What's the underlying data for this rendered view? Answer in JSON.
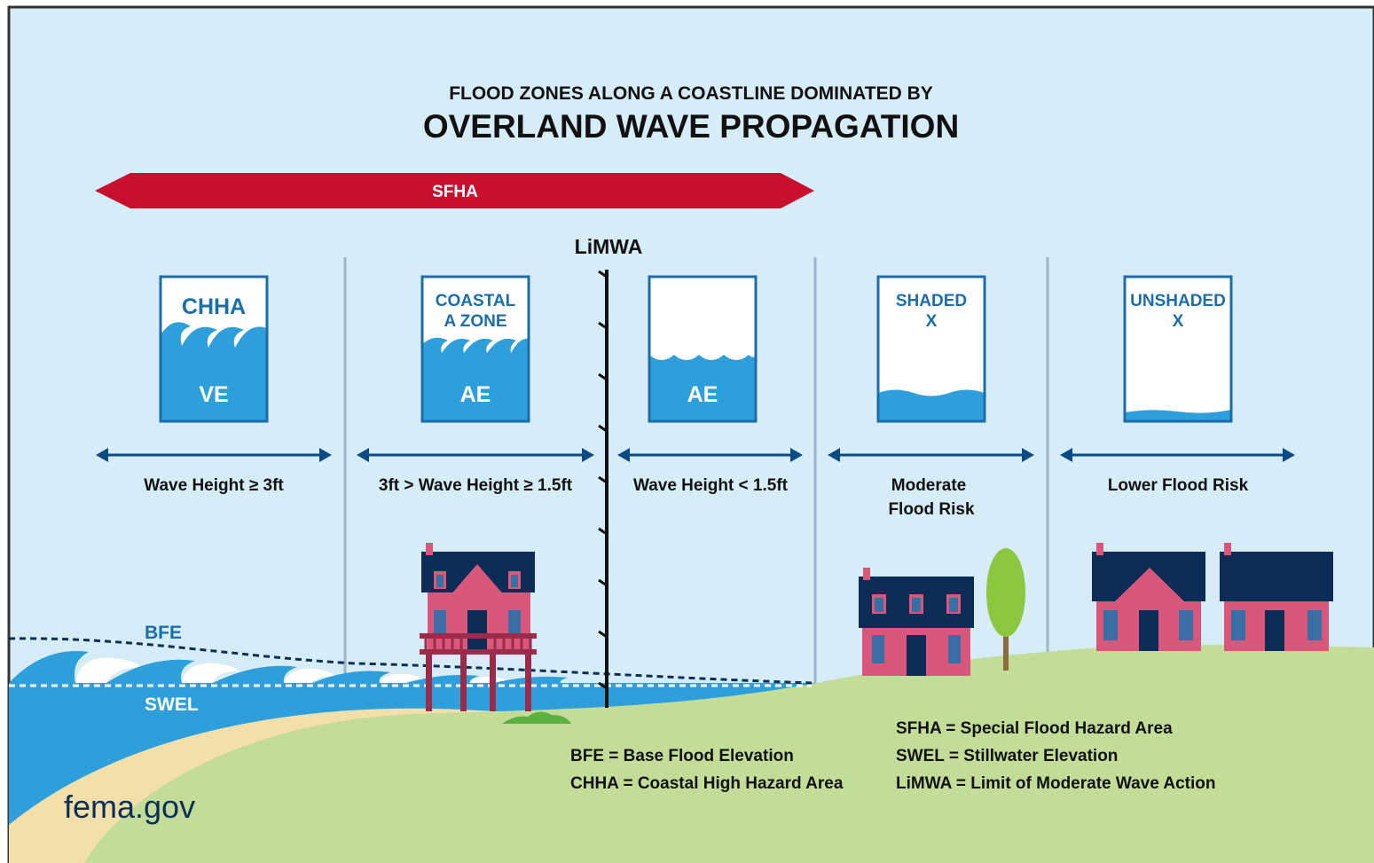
{
  "header": {
    "subtitle": "FLOOD ZONES ALONG A COASTLINE DOMINATED BY",
    "title": "OVERLAND WAVE PROPAGATION"
  },
  "sfha_arrow": {
    "label": "SFHA"
  },
  "limwa_label": "LiMWA",
  "zones": [
    {
      "line1": "CHHA",
      "line2": "",
      "code": "VE",
      "range": "Wave Height ≥ 3ft",
      "range2": ""
    },
    {
      "line1": "COASTAL",
      "line2": "A ZONE",
      "code": "AE",
      "range": "3ft > Wave Height ≥ 1.5ft",
      "range2": ""
    },
    {
      "line1": "",
      "line2": "",
      "code": "AE",
      "range": "Wave Height < 1.5ft",
      "range2": ""
    },
    {
      "line1": "SHADED",
      "line2": "X",
      "code": "",
      "range": "Moderate",
      "range2": "Flood Risk"
    },
    {
      "line1": "UNSHADED",
      "line2": "X",
      "code": "",
      "range": "Lower Flood Risk",
      "range2": ""
    }
  ],
  "water_levels": {
    "bfe": "BFE",
    "swel": "SWEL"
  },
  "legend": {
    "left": [
      "BFE = Base Flood Elevation",
      "CHHA = Coastal High Hazard Area"
    ],
    "right": [
      "SFHA = Special Flood Hazard Area",
      "SWEL = Stillwater Elevation",
      "LiMWA = Limit of Moderate Wave Action"
    ]
  },
  "source": "fema.gov",
  "colors": {
    "sky": "#d6ecf6",
    "water": "#2f9fdc",
    "sand": "#f3dfa9",
    "grass": "#c3dd98",
    "navy": "#0c2f57",
    "sfha_red": "#c8102e",
    "house_body": "#d8577a",
    "house_roof": "#0d2c55",
    "zone_blue": "#1c6ea8",
    "tree": "#8dc63f",
    "trunk": "#8a6d3b"
  }
}
